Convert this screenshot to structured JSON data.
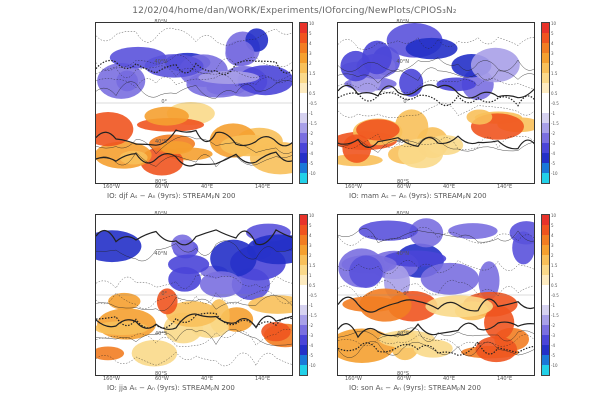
{
  "title": "12/02/04/home/dan/WORK/Experiments/IOforcing/NewPlots/CPIOS₃N₂",
  "lat_labels": [
    "80°N",
    "40°N",
    "0°",
    "40°S",
    "80°S"
  ],
  "lon_labels": [
    "160°W",
    "60°W",
    "40°E",
    "140°E"
  ],
  "colorbar": {
    "ticks": [
      "10",
      "5",
      "4",
      "3",
      "2",
      "1.5",
      "1",
      "0.5",
      "-0.5",
      "-1",
      "-1.5",
      "-2",
      "-3",
      "-4",
      "-5",
      "-10"
    ],
    "colors": [
      "#e8332a",
      "#f0541f",
      "#f27d22",
      "#f5a030",
      "#f8c05a",
      "#fad98a",
      "#fdebc0",
      "#ffffff",
      "#ffffff",
      "#d6d2f0",
      "#a8a0e8",
      "#7a6fe0",
      "#4a45d8",
      "#2430c8",
      "#1a78d8",
      "#22d0e8"
    ]
  },
  "panels": [
    {
      "id": "djf",
      "caption": "IO: djf Aₛ − Aₙ (9yrs): STREAMₚN 200"
    },
    {
      "id": "mam",
      "caption": "IO: mam Aₛ − Aₙ (9yrs): STREAMₚN 200"
    },
    {
      "id": "jja",
      "caption": "IO: jja Aₛ − Aₙ (9yrs): STREAMₚN 200"
    },
    {
      "id": "son",
      "caption": "IO: son Aₛ − Aₙ (9yrs): STREAMₚN 200"
    }
  ]
}
